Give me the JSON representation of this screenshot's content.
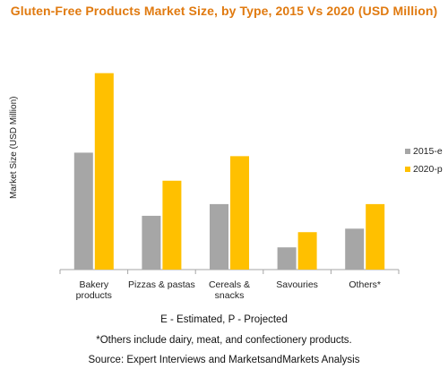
{
  "chart_data": {
    "type": "bar",
    "title": "Gluten-Free Products Market Size, by Type, 2015 Vs 2020 (USD Million)",
    "ylabel": "Market Size (USD Million)",
    "xlabel": "",
    "categories": [
      [
        "Bakery",
        "products"
      ],
      [
        "Pizzas & pastas"
      ],
      [
        "Cereals &",
        "snacks"
      ],
      [
        "Savouries"
      ],
      [
        "Others*"
      ]
    ],
    "series": [
      {
        "name": "2015-e",
        "color": "#a6a6a6",
        "values": [
          100,
          46,
          56,
          19,
          35
        ]
      },
      {
        "name": "2020-p",
        "color": "#ffc000",
        "values": [
          168,
          76,
          97,
          32,
          56
        ]
      }
    ],
    "ylim": [
      0,
      180
    ],
    "grid": false,
    "legend_position": "right"
  },
  "notes": {
    "estimated": "E - Estimated, P - Projected",
    "others": "*Others include dairy, meat, and confectionery products.",
    "source": "Source: Expert Interviews and MarketsandMarkets Analysis"
  }
}
